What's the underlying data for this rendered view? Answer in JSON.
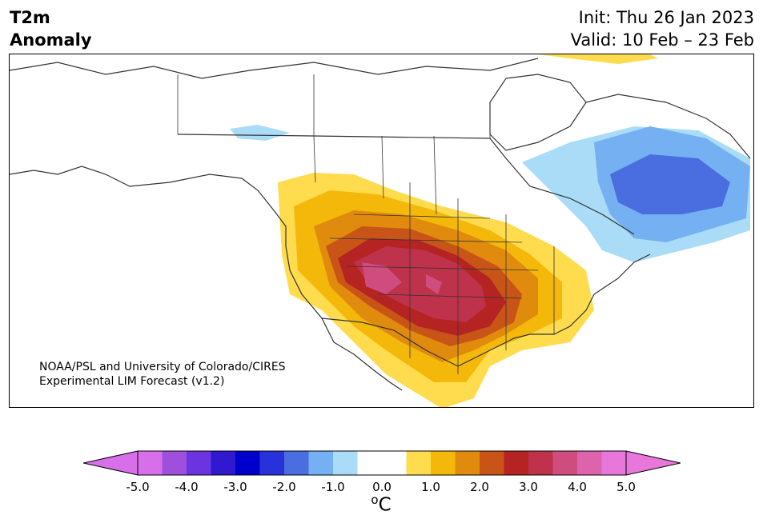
{
  "header": {
    "variable_line1": "T2m",
    "variable_line2": "Anomaly",
    "init": "Init: Thu 26 Jan 2023",
    "valid": "Valid: 10 Feb – 23 Feb"
  },
  "map": {
    "credit_line1": "NOAA/PSL and University of Colorado/CIRES",
    "credit_line2": "Experimental LIM Forecast (v1.2)"
  },
  "colorbar": {
    "unit_base": "C",
    "unit_super": "o",
    "ticks": [
      "-5.0",
      "-4.0",
      "-3.0",
      "-2.0",
      "-1.0",
      "0.0",
      "1.0",
      "2.0",
      "3.0",
      "4.0",
      "5.0"
    ],
    "colors": [
      "#d66fe8",
      "#9e4fdb",
      "#6b34de",
      "#3019cf",
      "#0000cc",
      "#2733d9",
      "#4a6de0",
      "#74b0f2",
      "#aadcf8",
      "#ffffff",
      "#ffffff",
      "#fedc4e",
      "#f4b80b",
      "#e08b0e",
      "#c85418",
      "#b52422",
      "#bf324c",
      "#cf4d7e",
      "#dd63ac",
      "#e877dc"
    ],
    "under_color": "#d66fe8",
    "over_color": "#e877dc"
  }
}
